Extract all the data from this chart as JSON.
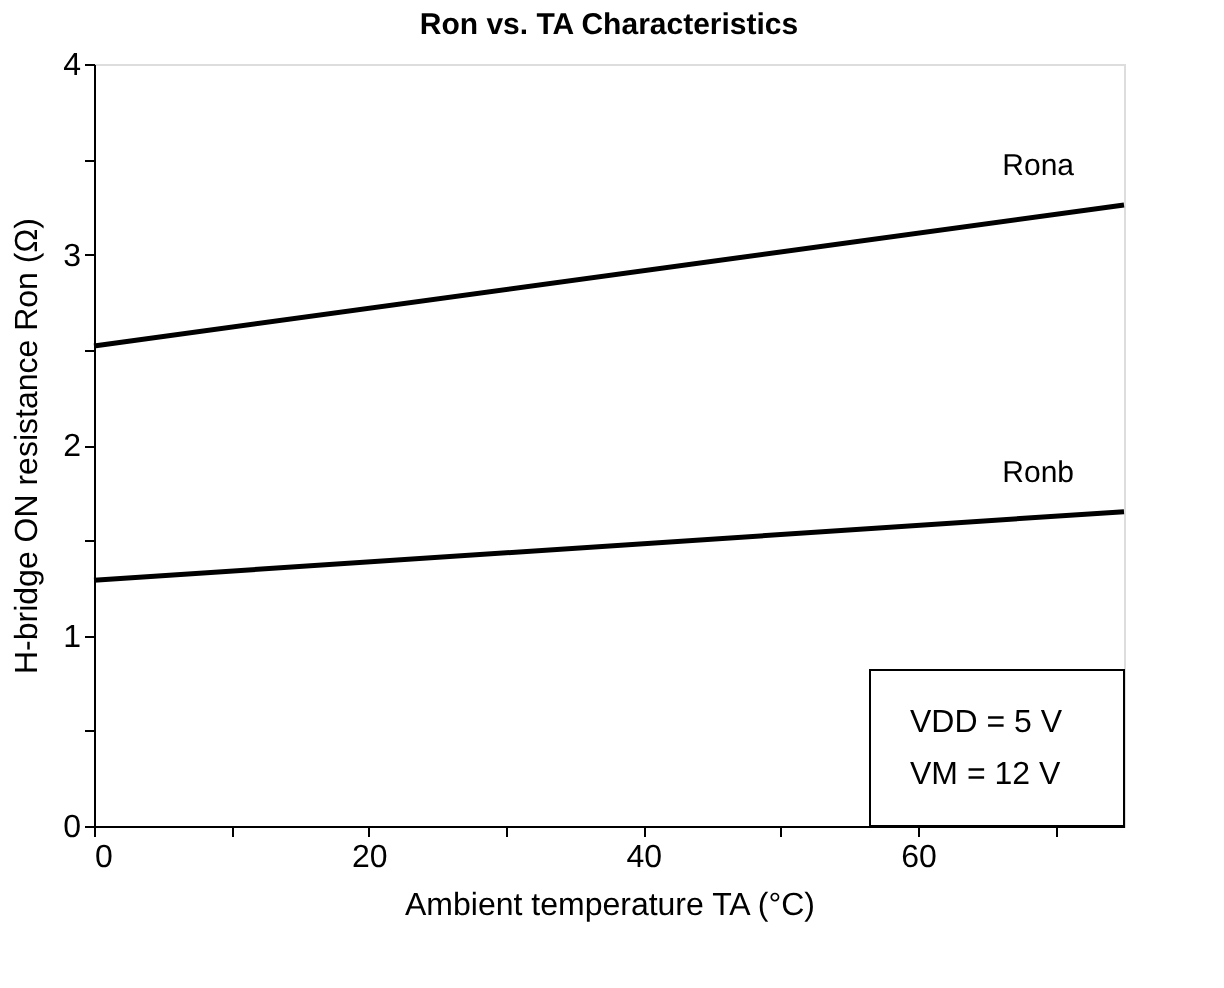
{
  "chart_data": {
    "type": "line",
    "title": "Ron vs. TA Characteristics",
    "xlabel": "Ambient temperature TA (°C)",
    "ylabel": "H-bridge ON resistance Ron (Ω)",
    "x": [
      0,
      75
    ],
    "series": [
      {
        "name": "Rona",
        "color": "#000000",
        "values": [
          2.52,
          3.26
        ]
      },
      {
        "name": "Ronb",
        "color": "#000000",
        "values": [
          1.29,
          1.65
        ]
      }
    ],
    "xlim": [
      0,
      75
    ],
    "xticks": [
      0,
      {
        "value": 10,
        "label": null
      },
      20,
      {
        "value": 30,
        "label": null
      },
      40,
      {
        "value": 50,
        "label": null
      },
      60,
      {
        "value": 70,
        "label": null
      }
    ],
    "ylim": [
      0,
      4
    ],
    "yticks": [
      0,
      {
        "value": 0.5,
        "label": null
      },
      1,
      {
        "value": 1.5,
        "label": null
      },
      2,
      {
        "value": 2.5,
        "label": null
      },
      3,
      {
        "value": 3.5,
        "label": null
      },
      4
    ],
    "grid": false,
    "legend": false,
    "marker": "none",
    "line_style": "solid",
    "annotations": [
      "VDD = 5 V",
      "VM = 12 V"
    ]
  }
}
